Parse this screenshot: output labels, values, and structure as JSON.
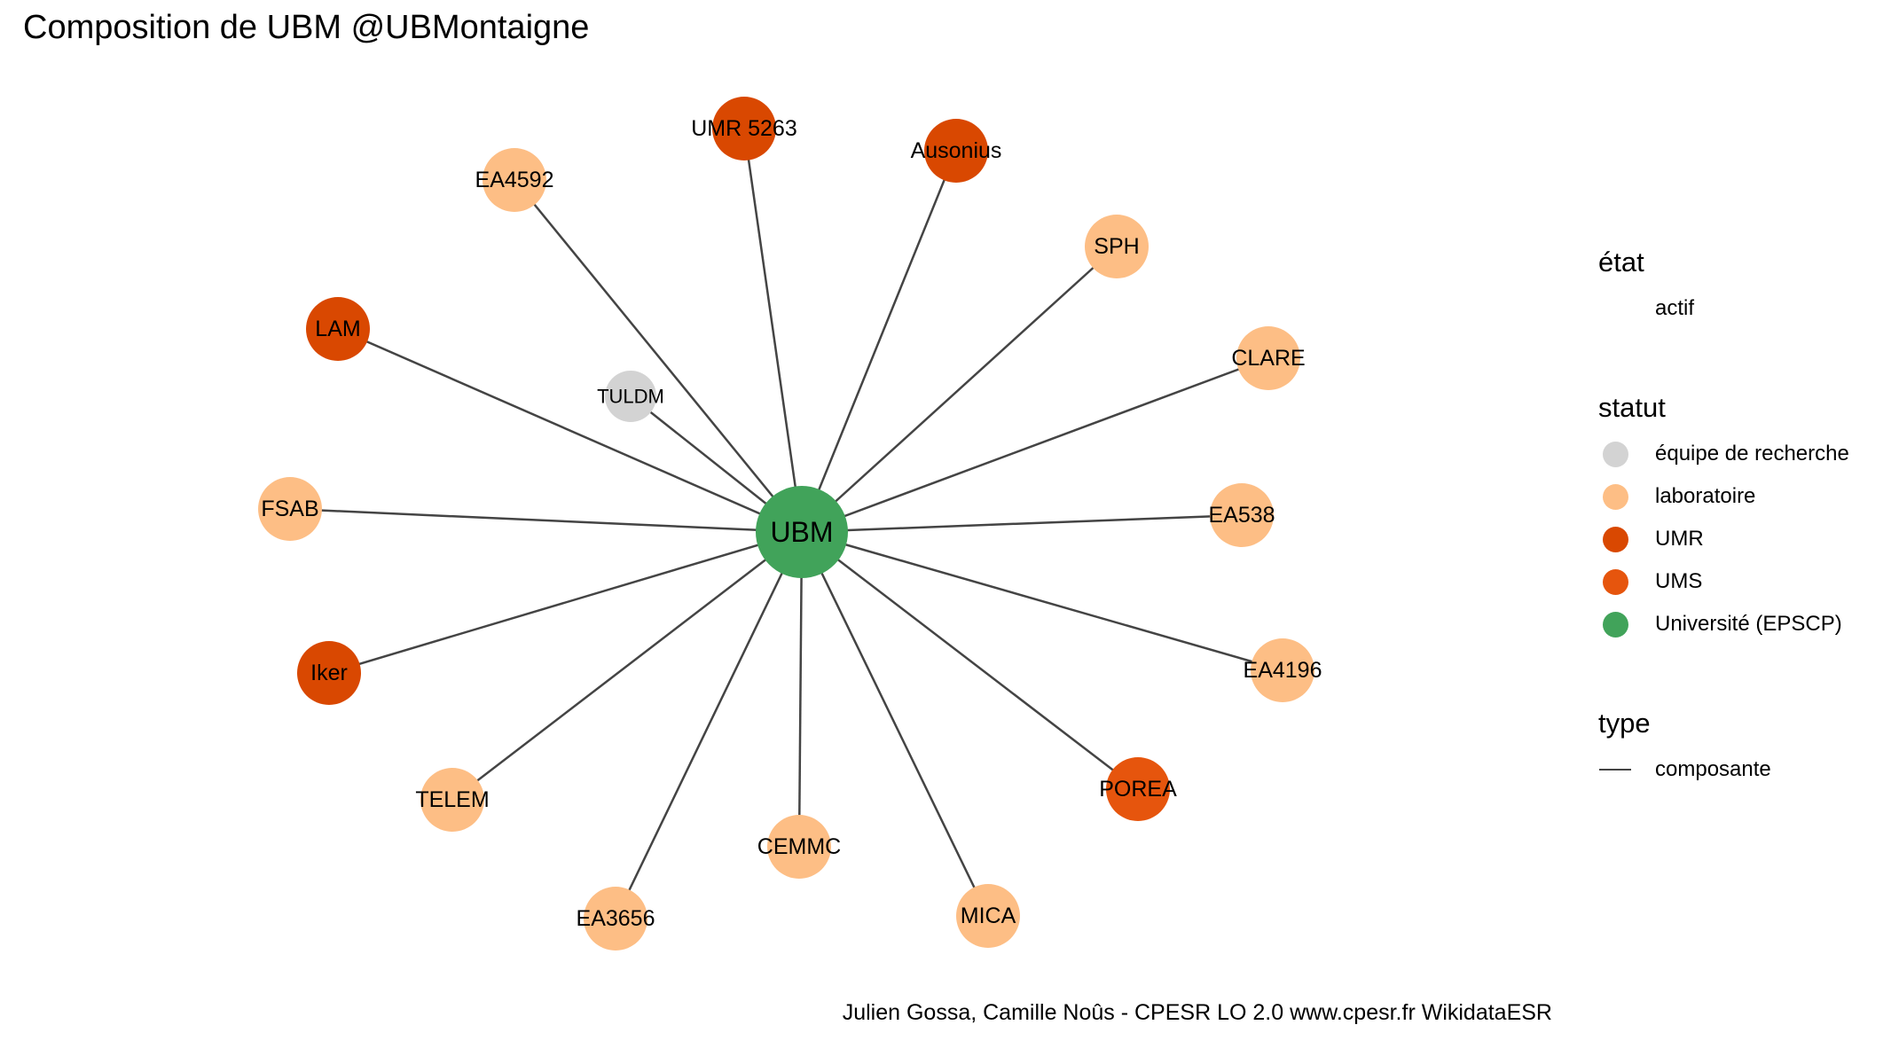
{
  "title": "Composition de UBM @UBMontaigne",
  "caption": "Julien Gossa, Camille Noûs - CPESR LO 2.0 www.cpesr.fr WikidataESR",
  "colors": {
    "équipe de recherche": "#d3d3d3",
    "laboratoire": "#fdbe85",
    "UMR": "#d94801",
    "UMS": "#e6550d",
    "Université (EPSCP)": "#41a35a",
    "edge": "#444444"
  },
  "legend": {
    "etat": {
      "title": "état",
      "items": [
        "actif"
      ]
    },
    "statut": {
      "title": "statut",
      "items": [
        "équipe de recherche",
        "laboratoire",
        "UMR",
        "UMS",
        "Université (EPSCP)"
      ]
    },
    "type": {
      "title": "type",
      "items": [
        "composante"
      ]
    }
  },
  "graph": {
    "center": {
      "label": "UBM",
      "statut": "Université (EPSCP)"
    },
    "nodes": [
      {
        "label": "UMR 5263",
        "statut": "UMR"
      },
      {
        "label": "Ausonius",
        "statut": "UMR"
      },
      {
        "label": "EA4592",
        "statut": "laboratoire"
      },
      {
        "label": "SPH",
        "statut": "laboratoire"
      },
      {
        "label": "LAM",
        "statut": "UMR"
      },
      {
        "label": "CLARE",
        "statut": "laboratoire"
      },
      {
        "label": "TULDM",
        "statut": "équipe de recherche"
      },
      {
        "label": "FSAB",
        "statut": "laboratoire"
      },
      {
        "label": "EA538",
        "statut": "laboratoire"
      },
      {
        "label": "Iker",
        "statut": "UMR"
      },
      {
        "label": "EA4196",
        "statut": "laboratoire"
      },
      {
        "label": "TELEM",
        "statut": "laboratoire"
      },
      {
        "label": "POREA",
        "statut": "UMS"
      },
      {
        "label": "CEMMC",
        "statut": "laboratoire"
      },
      {
        "label": "EA3656",
        "statut": "laboratoire"
      },
      {
        "label": "MICA",
        "statut": "laboratoire"
      }
    ]
  }
}
